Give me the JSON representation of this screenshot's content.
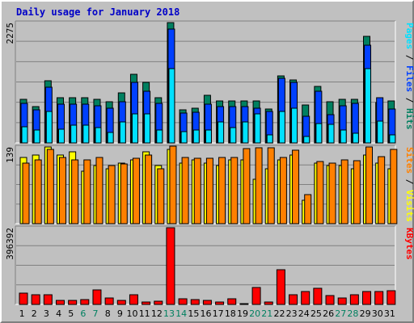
{
  "title": "Daily usage for January 2018",
  "chart_data": {
    "type": "bar",
    "title": "Daily usage for January 2018",
    "days": [
      "1",
      "2",
      "3",
      "4",
      "5",
      "6",
      "7",
      "8",
      "9",
      "10",
      "11",
      "12",
      "13",
      "14",
      "15",
      "16",
      "17",
      "18",
      "19",
      "20",
      "21",
      "22",
      "23",
      "24",
      "25",
      "26",
      "27",
      "28",
      "29",
      "30",
      "31"
    ],
    "weekend_days": [
      "6",
      "7",
      "13",
      "14",
      "20",
      "21",
      "27",
      "28"
    ],
    "colors": {
      "hits": "#008060",
      "files": "#0040ff",
      "pages": "#00e0ff",
      "visits": "#ffff00",
      "sites": "#ff8000",
      "kbytes": "#ff0000",
      "weekday_label": "#000000",
      "weekend_label": "#008060"
    },
    "panels": [
      {
        "name": "hits-panel",
        "max_label": "2275",
        "ymax": 2275,
        "series": [
          {
            "key": "hits",
            "values": [
              820,
              680,
              1180,
              850,
              850,
              850,
              830,
              780,
              950,
              1300,
              1140,
              850,
              2275,
              630,
              650,
              900,
              790,
              800,
              790,
              800,
              640,
              1260,
              1190,
              720,
              1070,
              780,
              830,
              830,
              2010,
              760,
              800
            ]
          },
          {
            "key": "files",
            "values": [
              750,
              620,
              1050,
              730,
              730,
              730,
              700,
              650,
              780,
              1150,
              980,
              750,
              2150,
              560,
              580,
              740,
              680,
              680,
              680,
              650,
              600,
              1220,
              1150,
              510,
              980,
              540,
              700,
              750,
              1850,
              860,
              640
            ]
          },
          {
            "key": "pages",
            "values": [
              300,
              250,
              600,
              260,
              330,
              330,
              290,
              200,
              400,
              550,
              550,
              240,
              1400,
              220,
              250,
              250,
              400,
              290,
              400,
              550,
              160,
              600,
              650,
              120,
              360,
              350,
              240,
              180,
              1400,
              410,
              160
            ]
          }
        ]
      },
      {
        "name": "visits-panel",
        "max_label": "139",
        "ymax": 139,
        "series": [
          {
            "key": "visits",
            "values": [
              120,
              125,
              139,
              125,
              130,
              95,
              105,
              100,
              110,
              115,
              130,
              105,
              135,
              110,
              115,
              110,
              105,
              115,
              115,
              80,
              100,
              115,
              125,
              42,
              110,
              105,
              105,
              100,
              125,
              110,
              100
            ]
          },
          {
            "key": "sites",
            "values": [
              110,
              115,
              134,
              120,
              115,
              115,
              120,
              105,
              108,
              118,
              125,
              100,
              140,
              120,
              118,
              118,
              120,
              120,
              136,
              138,
              138,
              120,
              133,
              52,
              113,
              110,
              115,
              114,
              139,
              122,
              134
            ]
          }
        ]
      },
      {
        "name": "kbytes-panel",
        "max_label": "396392",
        "ymax": 396392,
        "series": [
          {
            "key": "kbytes",
            "values": [
              58000,
              48000,
              50000,
              22000,
              22000,
              25000,
              75000,
              35000,
              20000,
              48000,
              12000,
              16000,
              396392,
              28000,
              24000,
              20000,
              14000,
              30000,
              2500,
              88000,
              14000,
              180000,
              50000,
              66000,
              85000,
              44000,
              32000,
              48000,
              68000,
              68000,
              72000
            ]
          }
        ]
      }
    ],
    "right_labels": [
      {
        "panel": "hits-panel",
        "parts": [
          {
            "text": "Pages",
            "key": "pages"
          },
          {
            "text": " / ",
            "key": "sep"
          },
          {
            "text": "Files",
            "key": "files"
          },
          {
            "text": " / ",
            "key": "sep"
          },
          {
            "text": "Hits",
            "key": "hits"
          }
        ]
      },
      {
        "panel": "visits-panel",
        "parts": [
          {
            "text": "Sites",
            "key": "sites"
          },
          {
            "text": " / ",
            "key": "sep"
          },
          {
            "text": "Visits",
            "key": "visits"
          }
        ]
      },
      {
        "panel": "kbytes-panel",
        "parts": [
          {
            "text": "KBytes",
            "key": "kbytes"
          }
        ]
      }
    ]
  }
}
